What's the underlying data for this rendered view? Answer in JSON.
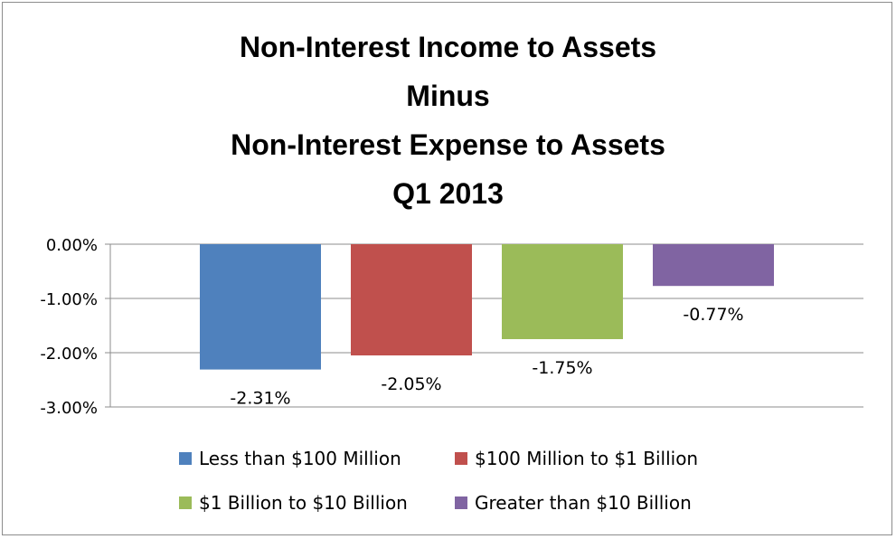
{
  "chart_data": {
    "type": "bar",
    "title_lines": [
      "Non-Interest Income to Assets",
      "Minus",
      "Non-Interest Expense to Assets",
      "Q1 2013"
    ],
    "categories": [
      "Less than $100 Million",
      "$100 Million to $1 Billion",
      "$1 Billion to $10 Billion",
      "Greater than $10 Billion"
    ],
    "values": [
      -2.31,
      -2.05,
      -1.75,
      -0.77
    ],
    "data_labels": [
      "-2.31%",
      "-2.05%",
      "-1.75%",
      "-0.77%"
    ],
    "colors": [
      "#4f81bd",
      "#c0504d",
      "#9bbb59",
      "#8064a2"
    ],
    "ylim": [
      -3,
      0
    ],
    "yticks": [
      0,
      -1,
      -2,
      -3
    ],
    "ytick_labels": [
      "0.00%",
      "-1.00%",
      "-2.00%",
      "-3.00%"
    ],
    "grid": true,
    "legend_position": "bottom",
    "xlabel": "",
    "ylabel": ""
  }
}
